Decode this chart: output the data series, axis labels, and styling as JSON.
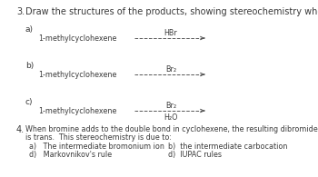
{
  "title_num": "3.",
  "title_text": "Draw the structures of the products, showing stereochemistry where relevant.",
  "q4_num": "4.",
  "q4_line1": "When bromine adds to the double bond in cyclohexene, the resulting dibromide",
  "q4_line2": "is trans.  This stereochemistry is due to:",
  "q4_a": "a)   The intermediate bromonium ion",
  "q4_b": "b)  the intermediate carbocation",
  "q4_d1": "d)   Markovnikov's rule",
  "q4_d2": "d)  IUPAC rules",
  "items": [
    {
      "label": "a)",
      "reagent_above": "HBr",
      "reagent_below": "",
      "reactant": "1-methylcyclohexene"
    },
    {
      "label": "b)",
      "reagent_above": "Br₂",
      "reagent_below": "",
      "reactant": "1-methylcyclohexene"
    },
    {
      "label": "c)",
      "reagent_above": "Br₂",
      "reagent_below": "H₂O",
      "reactant": "1-methylcyclohexene"
    }
  ],
  "bg_color": "#ffffff",
  "text_color": "#3a3a3a",
  "arrow_color": "#555555",
  "fs_title": 7.0,
  "fs_label": 6.5,
  "fs_body": 6.0,
  "fs_small": 5.8
}
